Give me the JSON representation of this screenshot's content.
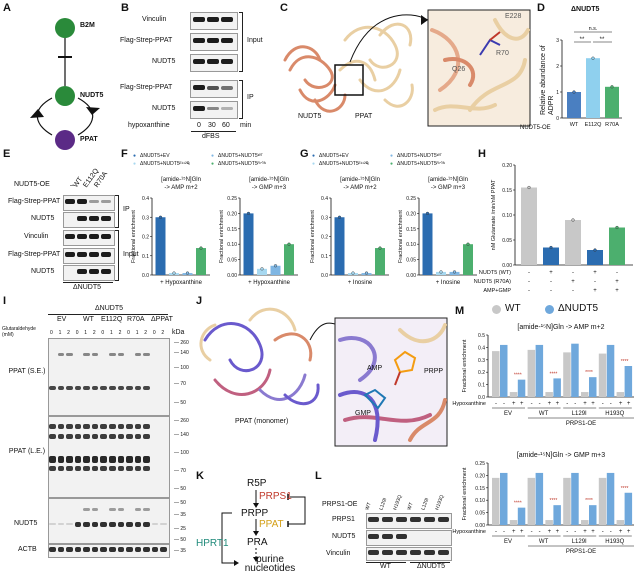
{
  "panels": {
    "A": "A",
    "B": "B",
    "C": "C",
    "D": "D",
    "E": "E",
    "F": "F",
    "G": "G",
    "H": "H",
    "I": "I",
    "J": "J",
    "K": "K",
    "L": "L",
    "M": "M"
  },
  "panelA": {
    "nodes": [
      "B2M",
      "NUDT5",
      "PPAT"
    ],
    "colors": {
      "b2m": "#2a8a3a",
      "nudt5": "#2a8a3a",
      "ppat": "#5b2a86"
    }
  },
  "panelB": {
    "rows": [
      "Vinculin",
      "Flag-Strep-PPAT",
      "NUDT5",
      "Flag-Strep-PPAT",
      "NUDT5"
    ],
    "input_label": "Input",
    "ip_label": "IP",
    "hyp_label": "hypoxanthine",
    "lanes": [
      "0",
      "30",
      "60"
    ],
    "unit": "min",
    "dfbs": "dFBS"
  },
  "panelC": {
    "labels": [
      "NUDT5",
      "PPAT"
    ],
    "residues": [
      "E228",
      "R70",
      "Q26"
    ]
  },
  "panelD": {
    "chart_data": {
      "type": "bar",
      "title": "ΔNUDT5",
      "ylabel": "Relative abundance of ADPR",
      "xlabel_prefix": "NUDT5-OE",
      "categories": [
        "WT",
        "E112Q",
        "R70A"
      ],
      "values": [
        1.0,
        2.3,
        1.2
      ],
      "ylim": [
        0,
        3
      ],
      "yticks": [
        "0",
        "1",
        "2",
        "3"
      ],
      "sig": [
        "**",
        "**",
        "n.s."
      ],
      "colors": [
        "#4a7fc1",
        "#8fd0ee",
        "#4caf6e"
      ]
    }
  },
  "panelE": {
    "oe_label": "NUDT5-OE",
    "cols": [
      "–",
      "WT",
      "E112Q",
      "R70A"
    ],
    "rows": [
      "Flag-Strep-PPAT",
      "NUDT5",
      "Vinculin",
      "Flag-Strep-PPAT",
      "NUDT5"
    ],
    "ip_label": "IP",
    "input_label": "Input",
    "footer": "ΔNUDT5"
  },
  "legendFG": {
    "items": [
      "ΔNUDT5+EV",
      "ΔNUDT5+NUDT5ᴱ¹¹²ᑫ",
      "ΔNUDT5+NUDT5ᵂᵀ",
      "ΔNUDT5+NUDT5ᴿ⁷⁰ᴬ"
    ],
    "colors": [
      "#2b6cb0",
      "#a7d8f0",
      "#7fb6e3",
      "#4caf6e"
    ]
  },
  "panelF": {
    "chart_data": [
      {
        "type": "bar",
        "title": "[amide-¹⁵N]Gln -> AMP m+2",
        "ylabel": "Fractional enrichment",
        "xlabel": "+ Hypoxanthine",
        "values": [
          0.3,
          0.01,
          0.01,
          0.14
        ],
        "ylim": [
          0,
          0.4
        ],
        "yticks": [
          "0.0",
          "0.1",
          "0.2",
          "0.3",
          "0.4"
        ]
      },
      {
        "type": "bar",
        "title": "[amide-¹⁵N]Gln -> GMP m+3",
        "ylabel": "Fractional enrichment",
        "xlabel": "+ Hypoxanthine",
        "values": [
          0.2,
          0.02,
          0.03,
          0.1
        ],
        "ylim": [
          0,
          0.25
        ],
        "yticks": [
          "0.00",
          "0.05",
          "0.10",
          "0.15",
          "0.20",
          "0.25"
        ]
      }
    ]
  },
  "panelG": {
    "chart_data": [
      {
        "type": "bar",
        "title": "[amide-¹⁵N]Gln -> AMP m+2",
        "ylabel": "Fractional enrichment",
        "xlabel": "+ Inosine",
        "values": [
          0.3,
          0.01,
          0.01,
          0.14
        ],
        "ylim": [
          0,
          0.4
        ],
        "yticks": [
          "0.0",
          "0.1",
          "0.2",
          "0.3",
          "0.4"
        ]
      },
      {
        "type": "bar",
        "title": "[amide-¹⁵N]Gln -> GMP m+3",
        "ylabel": "Fractional enrichment",
        "xlabel": "+ Inosine",
        "values": [
          0.2,
          0.01,
          0.01,
          0.1
        ],
        "ylim": [
          0,
          0.25
        ],
        "yticks": [
          "0.00",
          "0.05",
          "0.10",
          "0.15",
          "0.20",
          "0.25"
        ]
      }
    ]
  },
  "panelH": {
    "chart_data": {
      "type": "bar",
      "ylabel": "nM Glutamate /min/nM PPAT",
      "values": [
        0.155,
        0.035,
        0.09,
        0.03,
        0.075
      ],
      "ylim": [
        0,
        0.2
      ],
      "yticks": [
        "0.00",
        "0.05",
        "0.10",
        "0.15",
        "0.20"
      ],
      "colors": [
        "#c8c8c8",
        "#2b6cb0",
        "#c8c8c8",
        "#2b6cb0",
        "#4caf6e"
      ],
      "rows": [
        {
          "label": "NUDT5 (WT)",
          "marks": [
            "-",
            "+",
            "-",
            "+",
            "-"
          ]
        },
        {
          "label": "NUDT5 (R70A)",
          "marks": [
            "-",
            "-",
            "+",
            "-",
            "+"
          ]
        },
        {
          "label": "AMP+GMP",
          "marks": [
            "-",
            "-",
            "-",
            "+",
            "+"
          ]
        }
      ]
    }
  },
  "panelI": {
    "header": "ΔNUDT5",
    "groups": [
      "EV",
      "WT",
      "E112Q",
      "R70A",
      "ΔPPAT"
    ],
    "ga_label": "Glutaraldehyde (mM)",
    "ga_values": [
      "0",
      "1",
      "2",
      "0",
      "1",
      "2",
      "0",
      "1",
      "2",
      "0",
      "1",
      "2",
      "0",
      "2"
    ],
    "kda": "kDa",
    "ladder1": [
      "260",
      "140",
      "100",
      "70",
      "50"
    ],
    "ladder2": [
      "260",
      "140",
      "100",
      "70",
      "50"
    ],
    "ladder3": [
      "50",
      "35",
      "25"
    ],
    "ladder4": [
      "50",
      "35"
    ],
    "row_labels": [
      "PPAT (S.E.)",
      "PPAT (L.E.)",
      "NUDT5",
      "ACTB"
    ]
  },
  "panelJ": {
    "labels": [
      "PPAT (monomer)",
      "AMP",
      "PRPP",
      "GMP"
    ]
  },
  "panelK": {
    "nodes": [
      "R5P",
      "PRPS1",
      "PRPP",
      "PPAT",
      "PRA",
      "purine nucleotides"
    ],
    "hprt": "HPRT1",
    "colors": {
      "prps1": "#c0392b",
      "ppat": "#d4a017",
      "hprt": "#1f8a7a"
    }
  },
  "panelL": {
    "oe_label": "PRPS1-OE",
    "cols": [
      "WT",
      "L129I",
      "H193Q",
      "WT",
      "L129I",
      "H193Q"
    ],
    "rows": [
      "PRPS1",
      "NUDT5",
      "Vinculin"
    ],
    "groups": [
      "WT",
      "ΔNUDT5"
    ]
  },
  "panelM": {
    "legend": [
      {
        "name": "WT",
        "color": "#c8c8c8"
      },
      {
        "name": "ΔNUDT5",
        "color": "#6fa8dc"
      }
    ],
    "chart_data": [
      {
        "type": "bar",
        "title": "[amide-¹⁵N]Gln -> AMP m+2",
        "ylabel": "Fractional enrichment",
        "ylim": [
          0,
          0.5
        ],
        "yticks": [
          "0.0",
          "0.1",
          "0.2",
          "0.3",
          "0.4",
          "0.5"
        ],
        "series": [
          {
            "name": "WT",
            "values": [
              0.37,
              0.04,
              0.38,
              0.04,
              0.36,
              0.04,
              0.35,
              0.04
            ]
          },
          {
            "name": "ΔNUDT5",
            "values": [
              0.42,
              0.14,
              0.42,
              0.15,
              0.43,
              0.16,
              0.42,
              0.25
            ]
          }
        ],
        "sig": [
          "****",
          "****",
          "****",
          "****"
        ]
      },
      {
        "type": "bar",
        "title": "[amide-¹⁵N]Gln -> GMP m+3",
        "ylabel": "Fractional enrichment",
        "ylim": [
          0,
          0.25
        ],
        "yticks": [
          "0.00",
          "0.05",
          "0.10",
          "0.15",
          "0.20",
          "0.25"
        ],
        "series": [
          {
            "name": "WT",
            "values": [
              0.19,
              0.02,
              0.19,
              0.02,
              0.19,
              0.02,
              0.19,
              0.02
            ]
          },
          {
            "name": "ΔNUDT5",
            "values": [
              0.21,
              0.07,
              0.21,
              0.08,
              0.21,
              0.08,
              0.21,
              0.13
            ]
          }
        ],
        "sig": [
          "****",
          "****",
          "****",
          "****"
        ]
      }
    ],
    "hyp_label": "Hypoxanthine",
    "hyp_marks": [
      "-",
      "+",
      "-",
      "+",
      "-",
      "+",
      "-",
      "+"
    ],
    "groups": [
      "EV",
      "WT",
      "L129I",
      "H193Q"
    ],
    "prps": "PRPS1-OE"
  }
}
